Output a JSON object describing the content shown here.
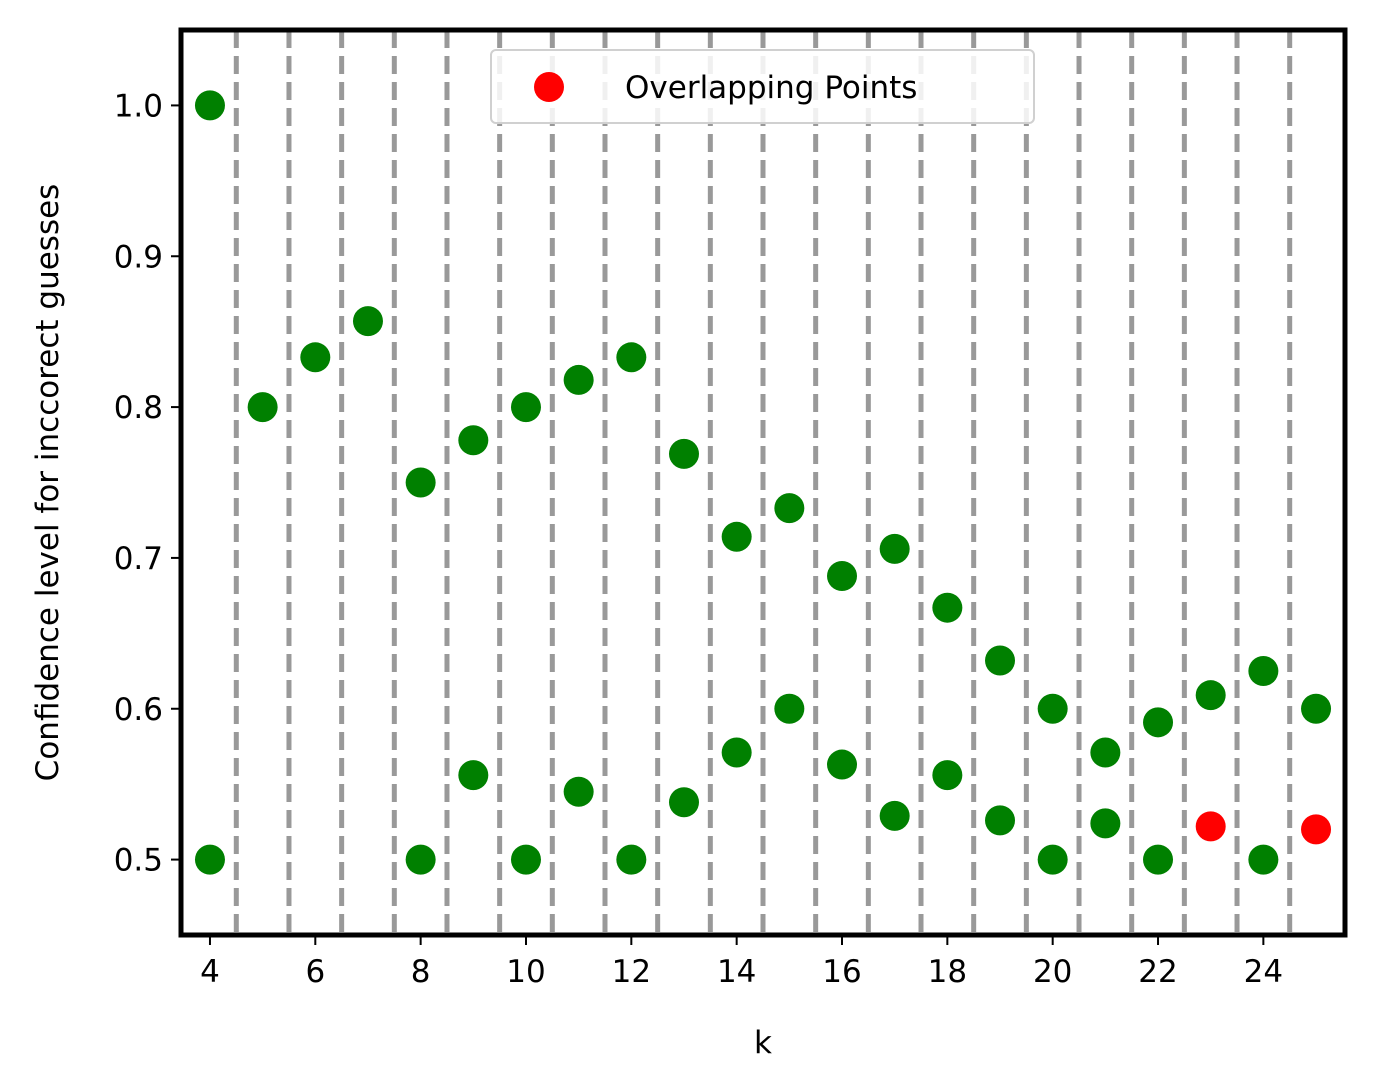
{
  "chart_data": {
    "type": "scatter",
    "xlabel": "k",
    "ylabel": "Confidence level for inccorect guesses",
    "xlim": [
      3.45,
      25.55
    ],
    "ylim": [
      0.45,
      1.05
    ],
    "x_ticks": [
      4,
      6,
      8,
      10,
      12,
      14,
      16,
      18,
      20,
      22,
      24
    ],
    "y_ticks": [
      0.5,
      0.6,
      0.7,
      0.8,
      0.9,
      1.0
    ],
    "y_tick_labels": [
      "0.5",
      "0.6",
      "0.7",
      "0.8",
      "0.9",
      "1.0"
    ],
    "grid": "vertical dashed lines at half-integers 4.5–24.5",
    "vlines": [
      4.5,
      5.5,
      6.5,
      7.5,
      8.5,
      9.5,
      10.5,
      11.5,
      12.5,
      13.5,
      14.5,
      15.5,
      16.5,
      17.5,
      18.5,
      19.5,
      20.5,
      21.5,
      22.5,
      23.5,
      24.5
    ],
    "legend": {
      "placement": "upper center",
      "entries": [
        {
          "label": "Overlapping Points",
          "color": "#ff0000"
        }
      ]
    },
    "series": [
      {
        "color": "#008000",
        "points": [
          [
            4,
            1.0
          ],
          [
            4,
            0.5
          ],
          [
            5,
            0.8
          ],
          [
            6,
            0.833
          ],
          [
            7,
            0.857
          ],
          [
            8,
            0.75
          ],
          [
            8,
            0.5
          ],
          [
            9,
            0.778
          ],
          [
            9,
            0.556
          ],
          [
            10,
            0.8
          ],
          [
            10,
            0.5
          ],
          [
            11,
            0.818
          ],
          [
            11,
            0.545
          ],
          [
            12,
            0.833
          ],
          [
            12,
            0.5
          ],
          [
            13,
            0.769
          ],
          [
            13,
            0.538
          ],
          [
            14,
            0.714
          ],
          [
            14,
            0.571
          ],
          [
            15,
            0.733
          ],
          [
            15,
            0.6
          ],
          [
            16,
            0.688
          ],
          [
            16,
            0.563
          ],
          [
            17,
            0.706
          ],
          [
            17,
            0.529
          ],
          [
            18,
            0.667
          ],
          [
            18,
            0.556
          ],
          [
            19,
            0.632
          ],
          [
            19,
            0.526
          ],
          [
            20,
            0.6
          ],
          [
            20,
            0.5
          ],
          [
            21,
            0.571
          ],
          [
            21,
            0.524
          ],
          [
            22,
            0.591
          ],
          [
            22,
            0.5
          ],
          [
            23,
            0.609
          ],
          [
            24,
            0.625
          ],
          [
            24,
            0.5
          ],
          [
            25,
            0.6
          ]
        ]
      },
      {
        "name": "Overlapping Points",
        "color": "#ff0000",
        "points": [
          [
            23,
            0.522
          ],
          [
            25,
            0.52
          ]
        ]
      }
    ]
  }
}
